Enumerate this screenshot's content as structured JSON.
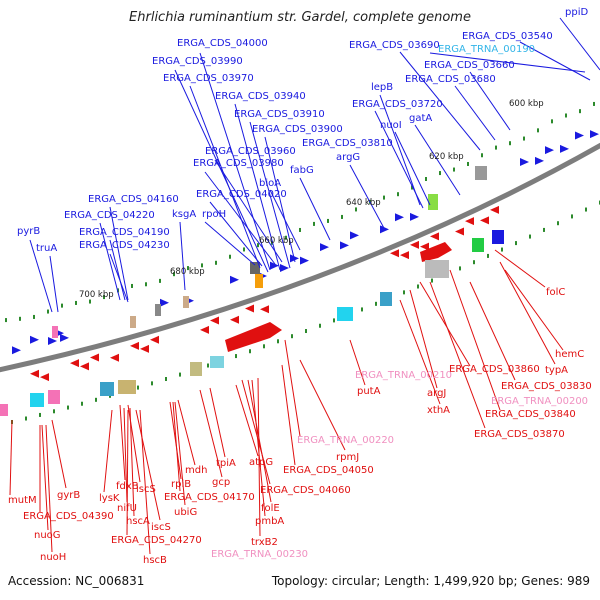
{
  "title": "Ehrlichia ruminantium str. Gardel, complete genome",
  "accession_label": "Accession: NC_006831",
  "footer_stats": "Topology: circular; Length: 1,499,920 bp; Genes: 989",
  "colors": {
    "forward_gene": "#1a1adf",
    "reverse_gene": "#e01010",
    "trna_forward": "#33b5e8",
    "trna_reverse": "#f090c0",
    "backbone": "#7d7d7d",
    "tick": "#2c8a2c"
  },
  "ticks": [
    "600 kbp",
    "620 kbp",
    "640 kbp",
    "660 kbp",
    "680 kbp",
    "700 kbp"
  ],
  "labels_top": [
    "Ehrlichia ruminantium str. Gardel, complete genome"
  ],
  "labels_forward": [
    "ppiD",
    "ERGA_CDS_03540",
    "ERGA_CDS_03690",
    "ERGA_CDS_03660",
    "ERGA_CDS_03680",
    "ERGA_CDS_04000",
    "ERGA_CDS_03990",
    "ERGA_CDS_03970",
    "lepB",
    "ERGA_CDS_03720",
    "ERGA_CDS_03940",
    "ERGA_CDS_03910",
    "nuoI",
    "gatA",
    "ERGA_CDS_03900",
    "ERGA_CDS_03810",
    "ERGA_CDS_03960",
    "ERGA_CDS_03980",
    "fabG",
    "argG",
    "bioA",
    "ERGA_CDS_04020",
    "ERGA_CDS_04160",
    "ksgA",
    "rpoH",
    "ERGA_CDS_04220",
    "pyrB",
    "ERGA_CDS_04190",
    "truA",
    "ERGA_CDS_04230"
  ],
  "labels_forward_trna": [
    "ERGA_TRNA_00190"
  ],
  "labels_reverse": [
    "folC",
    "hemC",
    "typA",
    "ERGA_CDS_03860",
    "ERGA_CDS_03830",
    "putA",
    "argJ",
    "ERGA_CDS_03840",
    "xthA",
    "ERGA_CDS_03870",
    "rpmJ",
    "ERGA_CDS_04050",
    "mutM",
    "gyrB",
    "ERGA_CDS_04390",
    "nuoG",
    "nuoH",
    "lysK",
    "fdxB",
    "iscS",
    "nifU",
    "hscA",
    "iscS",
    "ERGA_CDS_04270",
    "hscB",
    "mdh",
    "rpiB",
    "ubiG",
    "ERGA_CDS_04170",
    "gcp",
    "tpiA",
    "atpG",
    "ERGA_CDS_04060",
    "folE",
    "pmbA",
    "trxB2"
  ],
  "labels_reverse_trna": [
    "ERGA_TRNA_00210",
    "ERGA_TRNA_00200",
    "ERGA_TRNA_00220",
    "ERGA_TRNA_00230"
  ]
}
